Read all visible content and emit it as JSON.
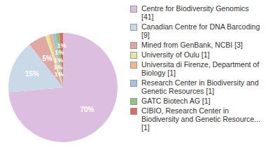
{
  "chart_data": {
    "type": "pie",
    "categories": [
      "Centre for Biodiversity Genomics [41]",
      "Canadian Centre for DNA Barcoding [9]",
      "Mined from GenBank, NCBI [3]",
      "University of Oulu [1]",
      "Universita di Firenze, Department of Biology [1]",
      "Research Center in Biodiversity and Genetic Resources [1]",
      "GATC Biotech AG [1]",
      "CIBIO, Research Center in Biodiversity and Genetic Resource... [1]"
    ],
    "values": [
      70,
      15,
      5,
      1,
      1,
      1,
      1,
      1
    ],
    "value_labels": [
      "70%",
      "15%",
      "5%",
      "1%",
      "1%",
      "1%",
      "1%",
      "1%"
    ],
    "data_labels": true,
    "colors": [
      "#dcbfe0",
      "#c9d9e8",
      "#e0a8a2",
      "#e2e8a4",
      "#f2b68c",
      "#a3c2e0",
      "#8fc47c",
      "#dd6a5c"
    ],
    "legend": "right"
  }
}
